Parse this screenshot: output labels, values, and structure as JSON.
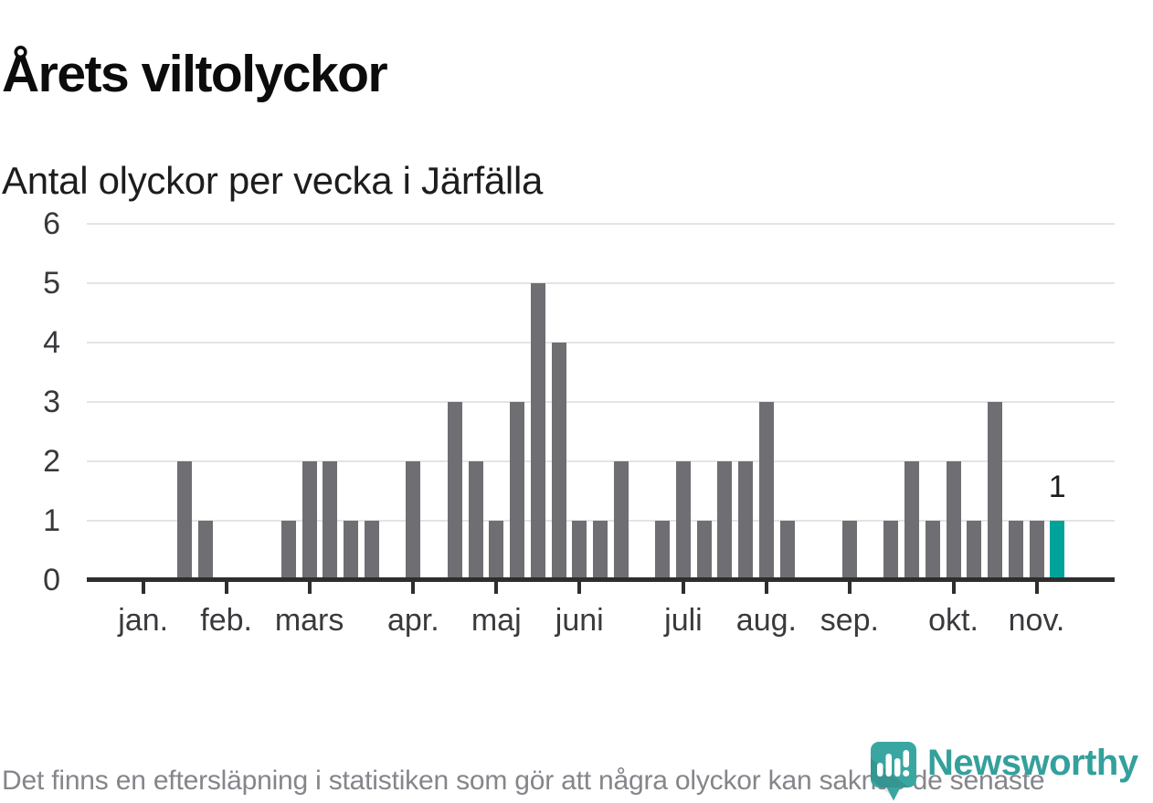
{
  "chart_data": {
    "type": "bar",
    "title": "Årets viltolyckor",
    "subtitle": "Antal olyckor per vecka i Järfälla",
    "x_unit": "vecka",
    "weeks": {
      "start": 1,
      "end": 45
    },
    "values": [
      0,
      0,
      2,
      1,
      0,
      0,
      0,
      1,
      2,
      2,
      1,
      1,
      0,
      2,
      0,
      3,
      2,
      1,
      3,
      5,
      4,
      1,
      1,
      2,
      0,
      1,
      2,
      1,
      2,
      2,
      3,
      1,
      0,
      0,
      1,
      0,
      1,
      2,
      1,
      2,
      1,
      3,
      1,
      1,
      1
    ],
    "highlight_week": 45,
    "annotation": {
      "week": 45,
      "text": "1"
    },
    "y_ticks": [
      0,
      1,
      2,
      3,
      4,
      5,
      6
    ],
    "ylim": [
      0,
      6
    ],
    "month_ticks": [
      {
        "label": "jan.",
        "week": 1
      },
      {
        "label": "feb.",
        "week": 5
      },
      {
        "label": "mars",
        "week": 9
      },
      {
        "label": "apr.",
        "week": 14
      },
      {
        "label": "maj",
        "week": 18
      },
      {
        "label": "juni",
        "week": 22
      },
      {
        "label": "juli",
        "week": 27
      },
      {
        "label": "aug.",
        "week": 31
      },
      {
        "label": "sep.",
        "week": 35
      },
      {
        "label": "okt.",
        "week": 40
      },
      {
        "label": "nov.",
        "week": 44
      }
    ],
    "grid": true,
    "legend": "none",
    "colors": {
      "bar": "#6e6e73",
      "highlight": "#00a39a",
      "gridline": "#e4e4e4",
      "axis": "#2e2e2e",
      "annotation_text": "#1d1d1d"
    }
  },
  "footer": {
    "disclaimer": "Det finns en eftersläpning i statistiken som gör att några olyckor kan saknas de senaste veckorna.",
    "logo_text": "Newsworthy",
    "logo_color": "#34a09c",
    "logo_icon": "newsworthy-speech-bubble-bar-chart"
  }
}
